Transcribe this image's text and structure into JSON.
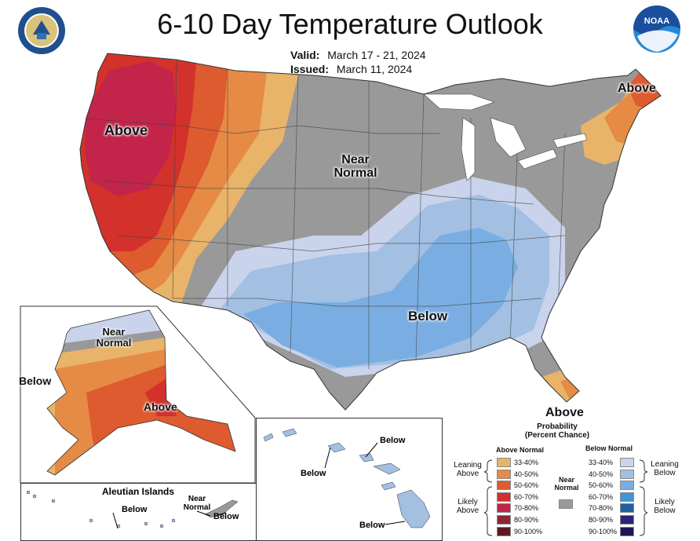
{
  "title": "6-10 Day Temperature Outlook",
  "valid": {
    "label": "Valid:",
    "value": "March 17 - 21, 2024"
  },
  "issued": {
    "label": "Issued:",
    "value": "March 11, 2024"
  },
  "map_labels": {
    "west_above": "Above",
    "northeast_above": "Above",
    "central_near": "Near Normal",
    "south_below": "Below",
    "florida_above": "Above",
    "alaska_near": "Near Normal",
    "alaska_below": "Below",
    "alaska_above": "Above",
    "aleutian_title": "Aleutian Islands",
    "aleutian_below_1": "Below",
    "aleutian_near": "Near Normal",
    "aleutian_below_2": "Below",
    "hawaii_below_1": "Below",
    "hawaii_below_2": "Below",
    "hawaii_below_3": "Below"
  },
  "legend": {
    "title": "Probability",
    "subtitle": "(Percent Chance)",
    "above_header": "Above Normal",
    "below_header": "Below Normal",
    "near_label": "Near Normal",
    "leaning_above": "Leaning Above",
    "likely_above": "Likely Above",
    "leaning_below": "Leaning Below",
    "likely_below": "Likely Below",
    "above_items": [
      {
        "range": "33-40%",
        "color": "#e8b46a"
      },
      {
        "range": "40-50%",
        "color": "#e58b45"
      },
      {
        "range": "50-60%",
        "color": "#de5a2f"
      },
      {
        "range": "60-70%",
        "color": "#d3312b"
      },
      {
        "range": "70-80%",
        "color": "#c3244a"
      },
      {
        "range": "80-90%",
        "color": "#8b2732"
      },
      {
        "range": "90-100%",
        "color": "#5c1a22"
      }
    ],
    "near_color": "#999999",
    "below_items": [
      {
        "range": "33-40%",
        "color": "#c9d3ec"
      },
      {
        "range": "40-50%",
        "color": "#a3bfe2"
      },
      {
        "range": "50-60%",
        "color": "#7aaee2"
      },
      {
        "range": "60-70%",
        "color": "#3f95d8"
      },
      {
        "range": "70-80%",
        "color": "#1f5fa3"
      },
      {
        "range": "80-90%",
        "color": "#2a2478"
      },
      {
        "range": "90-100%",
        "color": "#1f1455"
      }
    ]
  },
  "colors": {
    "near_normal": "#999999",
    "ocean": "#ffffff",
    "lakes": "#ffffff"
  },
  "icons": [
    "commerce-seal-icon",
    "noaa-logo-icon"
  ]
}
